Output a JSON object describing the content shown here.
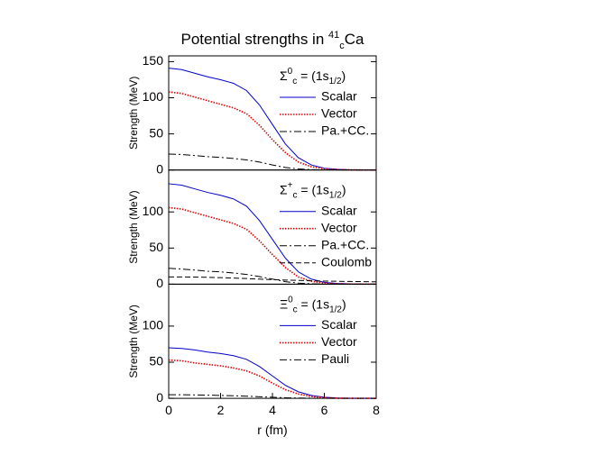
{
  "title": [
    {
      "text": "Potential strengths in "
    },
    {
      "text": "41",
      "shift": "sup"
    },
    {
      "text": "c",
      "shift": "sub"
    },
    {
      "text": "Ca"
    }
  ],
  "chart_data": [
    {
      "type": "line",
      "label": [
        {
          "text": "Σ"
        },
        {
          "text": "0",
          "shift": "sup"
        },
        {
          "text": "c",
          "shift": "sub"
        },
        {
          "text": " = (1s"
        },
        {
          "text": "1/2",
          "shift": "sub"
        },
        {
          "text": ")"
        }
      ],
      "ylabel": "Strength (MeV)",
      "xlim": [
        0,
        8
      ],
      "ylim": [
        0,
        158
      ],
      "yticks": [
        0,
        50,
        100,
        150
      ],
      "x": [
        0,
        0.5,
        1,
        1.5,
        2,
        2.5,
        3,
        3.5,
        4,
        4.5,
        5,
        5.5,
        6,
        6.5,
        7,
        7.5,
        8
      ],
      "series": [
        {
          "name": "Scalar",
          "color": "#0000cc",
          "dash": "solid",
          "values": [
            141,
            139,
            134,
            129,
            125,
            120,
            110,
            90,
            63,
            36,
            17,
            7,
            2.5,
            1,
            0.3,
            0.1,
            0
          ]
        },
        {
          "name": "Vector",
          "color": "#e00000",
          "dash": "dotted",
          "values": [
            108,
            106,
            101,
            96,
            91,
            86,
            78,
            62,
            42,
            24,
            11,
            4.5,
            1.6,
            0.6,
            0.2,
            0.1,
            0
          ]
        },
        {
          "name": "Pa.+CC.",
          "color": "#000000",
          "dash": "dashdot",
          "values": [
            22,
            21.5,
            20,
            18.5,
            17.5,
            16,
            14,
            11,
            7,
            3.5,
            1.5,
            0.5,
            0.2,
            0.1,
            0,
            0,
            0
          ]
        }
      ]
    },
    {
      "type": "line",
      "label": [
        {
          "text": "Σ"
        },
        {
          "text": "+",
          "shift": "sup"
        },
        {
          "text": "c",
          "shift": "sub"
        },
        {
          "text": " = (1s"
        },
        {
          "text": "1/2",
          "shift": "sub"
        },
        {
          "text": ")"
        }
      ],
      "ylabel": "Strength (MeV)",
      "xlim": [
        0,
        8
      ],
      "ylim": [
        0,
        158
      ],
      "yticks": [
        0,
        50,
        100
      ],
      "x": [
        0,
        0.5,
        1,
        1.5,
        2,
        2.5,
        3,
        3.5,
        4,
        4.5,
        5,
        5.5,
        6,
        6.5,
        7,
        7.5,
        8
      ],
      "series": [
        {
          "name": "Scalar",
          "color": "#0000cc",
          "dash": "solid",
          "values": [
            139,
            137,
            132,
            127,
            123,
            118,
            108,
            88,
            62,
            36,
            17,
            7,
            2.5,
            1,
            0.3,
            0.1,
            0
          ]
        },
        {
          "name": "Vector",
          "color": "#e00000",
          "dash": "dotted",
          "values": [
            106,
            104,
            99,
            94,
            89,
            84,
            76,
            60,
            41,
            23,
            10,
            4,
            1.5,
            0.5,
            0.2,
            0.1,
            0
          ]
        },
        {
          "name": "Pa.+CC.",
          "color": "#000000",
          "dash": "dashdot",
          "values": [
            22,
            21,
            19.5,
            18,
            17,
            15.5,
            13.5,
            10.5,
            7,
            3.5,
            1.5,
            0.5,
            0.2,
            0.1,
            0,
            0,
            0
          ]
        },
        {
          "name": "Coulomb",
          "color": "#000000",
          "dash": "dashed",
          "values": [
            10,
            10,
            9.8,
            9.5,
            9,
            8.5,
            7.8,
            7,
            6.3,
            5.7,
            5.2,
            4.7,
            4.3,
            4,
            3.7,
            3.5,
            3.3
          ]
        }
      ]
    },
    {
      "type": "line",
      "label": [
        {
          "text": "Ξ"
        },
        {
          "text": "0",
          "shift": "sup"
        },
        {
          "text": "c",
          "shift": "sub"
        },
        {
          "text": " = (1s"
        },
        {
          "text": "1/2",
          "shift": "sub"
        },
        {
          "text": ")"
        }
      ],
      "ylabel": "Strength (MeV)",
      "xlabel": "r (fm)",
      "xlim": [
        0,
        8
      ],
      "ylim": [
        0,
        158
      ],
      "yticks": [
        0,
        50,
        100
      ],
      "xticks": [
        0,
        2,
        4,
        6,
        8
      ],
      "x": [
        0,
        0.5,
        1,
        1.5,
        2,
        2.5,
        3,
        3.5,
        4,
        4.5,
        5,
        5.5,
        6,
        6.5,
        7,
        7.5,
        8
      ],
      "series": [
        {
          "name": "Scalar",
          "color": "#0000cc",
          "dash": "solid",
          "values": [
            70,
            69,
            67,
            64,
            62,
            59,
            54,
            44,
            31,
            18,
            9,
            4,
            1.5,
            0.5,
            0.2,
            0.1,
            0
          ]
        },
        {
          "name": "Vector",
          "color": "#e00000",
          "dash": "dotted",
          "values": [
            53,
            52,
            49,
            47,
            45,
            42,
            38,
            31,
            21,
            12,
            6,
            2.5,
            1,
            0.3,
            0.1,
            0,
            0
          ]
        },
        {
          "name": "Pauli",
          "color": "#000000",
          "dash": "dashdot",
          "values": [
            5,
            5,
            4.7,
            4.4,
            4,
            3.5,
            3,
            2.2,
            1.5,
            0.8,
            0.4,
            0.2,
            0.1,
            0,
            0,
            0,
            0
          ]
        }
      ]
    }
  ]
}
